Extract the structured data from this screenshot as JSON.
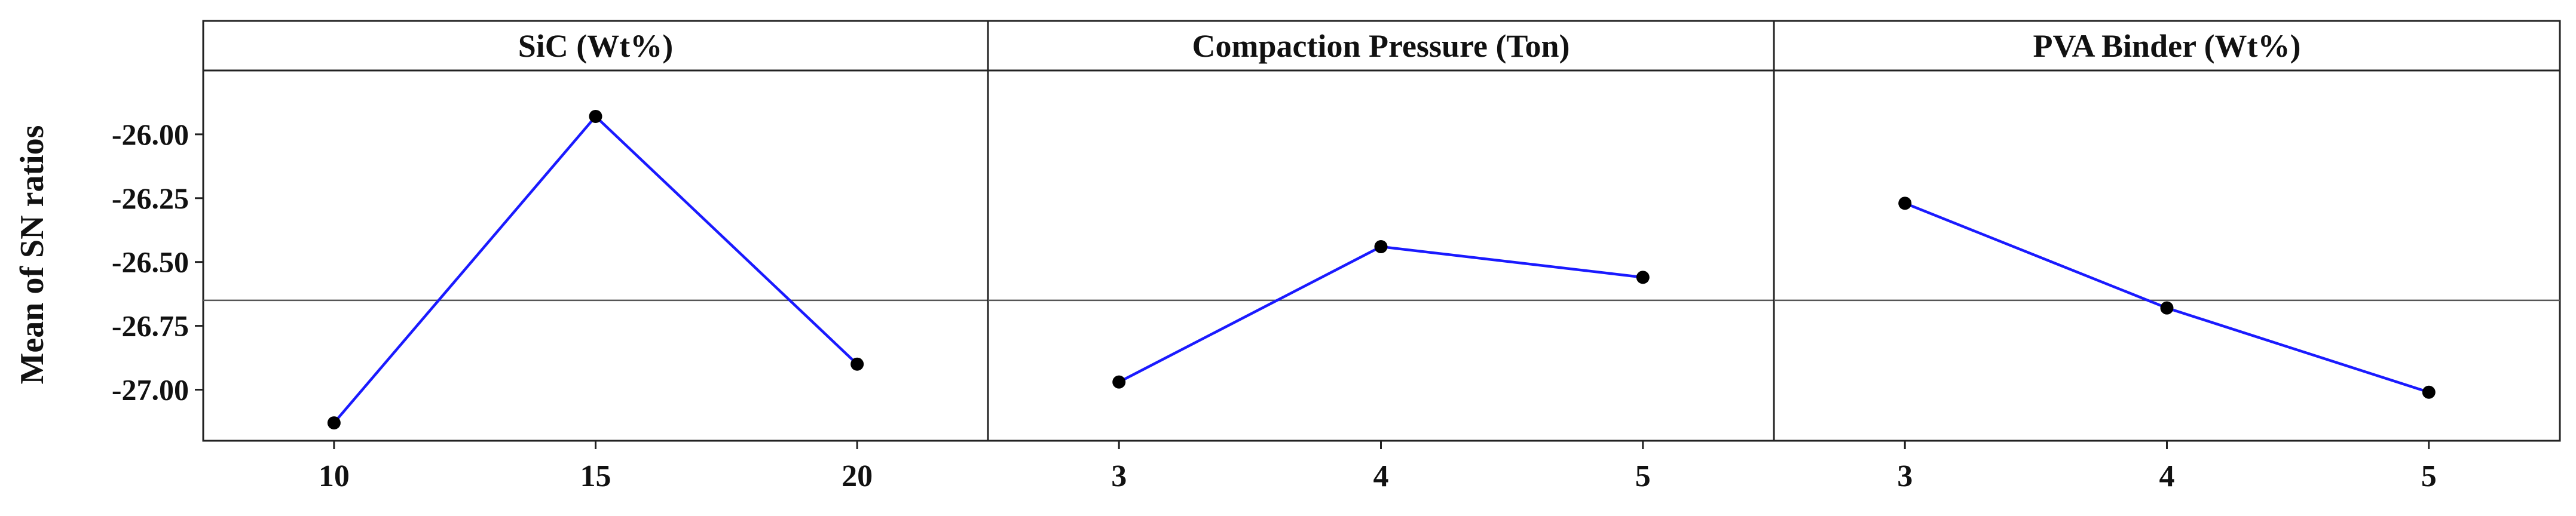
{
  "chart_data": {
    "type": "line",
    "ylabel": "Mean of SN ratios",
    "ylim": [
      -27.2,
      -25.75
    ],
    "yticks": [
      -26.0,
      -26.25,
      -26.5,
      -26.75,
      -27.0
    ],
    "ytick_labels": [
      "-26.00",
      "-26.25",
      "-26.50",
      "-26.75",
      "-27.00"
    ],
    "reference_line": -26.65,
    "grid": false,
    "colors": {
      "line": "#1a1aff",
      "marker": "#000000",
      "frame": "#222222"
    },
    "panels": [
      {
        "title": "SiC (Wt%)",
        "categories": [
          "10",
          "15",
          "20"
        ],
        "values": [
          -27.13,
          -25.93,
          -26.9
        ]
      },
      {
        "title": "Compaction Pressure (Ton)",
        "categories": [
          "3",
          "4",
          "5"
        ],
        "values": [
          -26.97,
          -26.44,
          -26.56
        ]
      },
      {
        "title": "PVA Binder (Wt%)",
        "categories": [
          "3",
          "4",
          "5"
        ],
        "values": [
          -26.27,
          -26.68,
          -27.01
        ]
      }
    ]
  }
}
